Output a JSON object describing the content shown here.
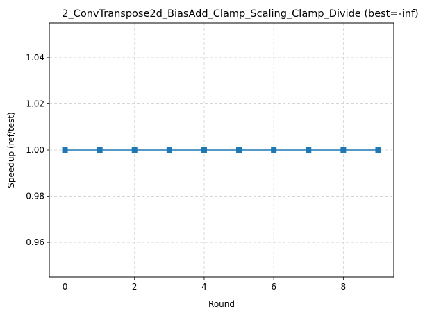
{
  "chart_data": {
    "type": "line",
    "title": "2_ConvTranspose2d_BiasAdd_Clamp_Scaling_Clamp_Divide (best=-inf)",
    "xlabel": "Round",
    "ylabel": "Speedup (ref/test)",
    "x": [
      0,
      1,
      2,
      3,
      4,
      5,
      6,
      7,
      8,
      9
    ],
    "series": [
      {
        "values": [
          1.0,
          1.0,
          1.0,
          1.0,
          1.0,
          1.0,
          1.0,
          1.0,
          1.0,
          1.0
        ]
      }
    ],
    "xlim": [
      -0.45,
      9.45
    ],
    "ylim": [
      0.945,
      1.055
    ],
    "xticks": [
      0,
      2,
      4,
      6,
      8
    ],
    "yticks": [
      0.96,
      0.98,
      1.0,
      1.02,
      1.04
    ],
    "ytick_labels": [
      "0.96",
      "0.98",
      "1.00",
      "1.02",
      "1.04"
    ],
    "grid": true,
    "line_color": "#1f77b4",
    "marker": "square"
  }
}
